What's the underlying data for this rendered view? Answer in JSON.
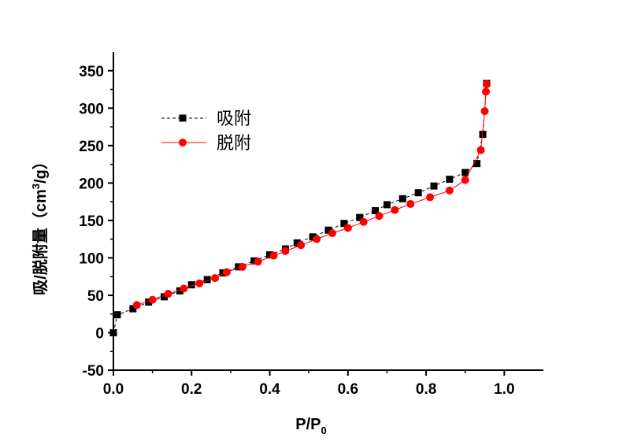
{
  "chart_data": {
    "type": "scatter",
    "xlabel": "P/P",
    "xlabel_subscript": "0",
    "ylabel_main": "吸/脱附量（cm",
    "ylabel_superscript": "3",
    "ylabel_tail": "/g）",
    "xlim": [
      0.0,
      1.1
    ],
    "ylim": [
      -50,
      375
    ],
    "x_ticks": [
      0.0,
      0.2,
      0.4,
      0.6,
      0.8,
      1.0
    ],
    "x_tick_labels": [
      "0.0",
      "0.2",
      "0.4",
      "0.6",
      "0.8",
      "1.0"
    ],
    "y_ticks": [
      -50,
      0,
      50,
      100,
      150,
      200,
      250,
      300,
      350
    ],
    "y_tick_labels": [
      "-50",
      "0",
      "50",
      "100",
      "150",
      "200",
      "250",
      "300",
      "350"
    ],
    "grid": false,
    "legend_position": "upper-left",
    "series": [
      {
        "name": "吸附",
        "color": "#000000",
        "marker": "square",
        "line": "dashed",
        "x": [
          0.0,
          0.01,
          0.05,
          0.09,
          0.13,
          0.17,
          0.2,
          0.24,
          0.28,
          0.32,
          0.36,
          0.4,
          0.44,
          0.47,
          0.51,
          0.55,
          0.59,
          0.63,
          0.67,
          0.7,
          0.74,
          0.78,
          0.82,
          0.86,
          0.9,
          0.93,
          0.945,
          0.955
        ],
        "y": [
          0,
          24,
          32,
          41,
          48,
          56,
          64,
          71,
          80,
          88,
          96,
          104,
          112,
          120,
          128,
          137,
          146,
          154,
          163,
          171,
          179,
          187,
          196,
          205,
          214,
          226,
          265,
          333
        ]
      },
      {
        "name": "脱附",
        "color": "#ff0000",
        "marker": "circle",
        "line": "solid",
        "x": [
          0.955,
          0.953,
          0.95,
          0.94,
          0.9,
          0.86,
          0.81,
          0.76,
          0.72,
          0.68,
          0.64,
          0.6,
          0.56,
          0.52,
          0.48,
          0.44,
          0.41,
          0.37,
          0.33,
          0.29,
          0.26,
          0.22,
          0.18,
          0.14,
          0.1,
          0.06
        ],
        "y": [
          332,
          322,
          296,
          244,
          204,
          190,
          181,
          172,
          164,
          156,
          148,
          140,
          133,
          125,
          117,
          109,
          103,
          95,
          88,
          81,
          73,
          66,
          59,
          52,
          44,
          37
        ]
      }
    ]
  }
}
